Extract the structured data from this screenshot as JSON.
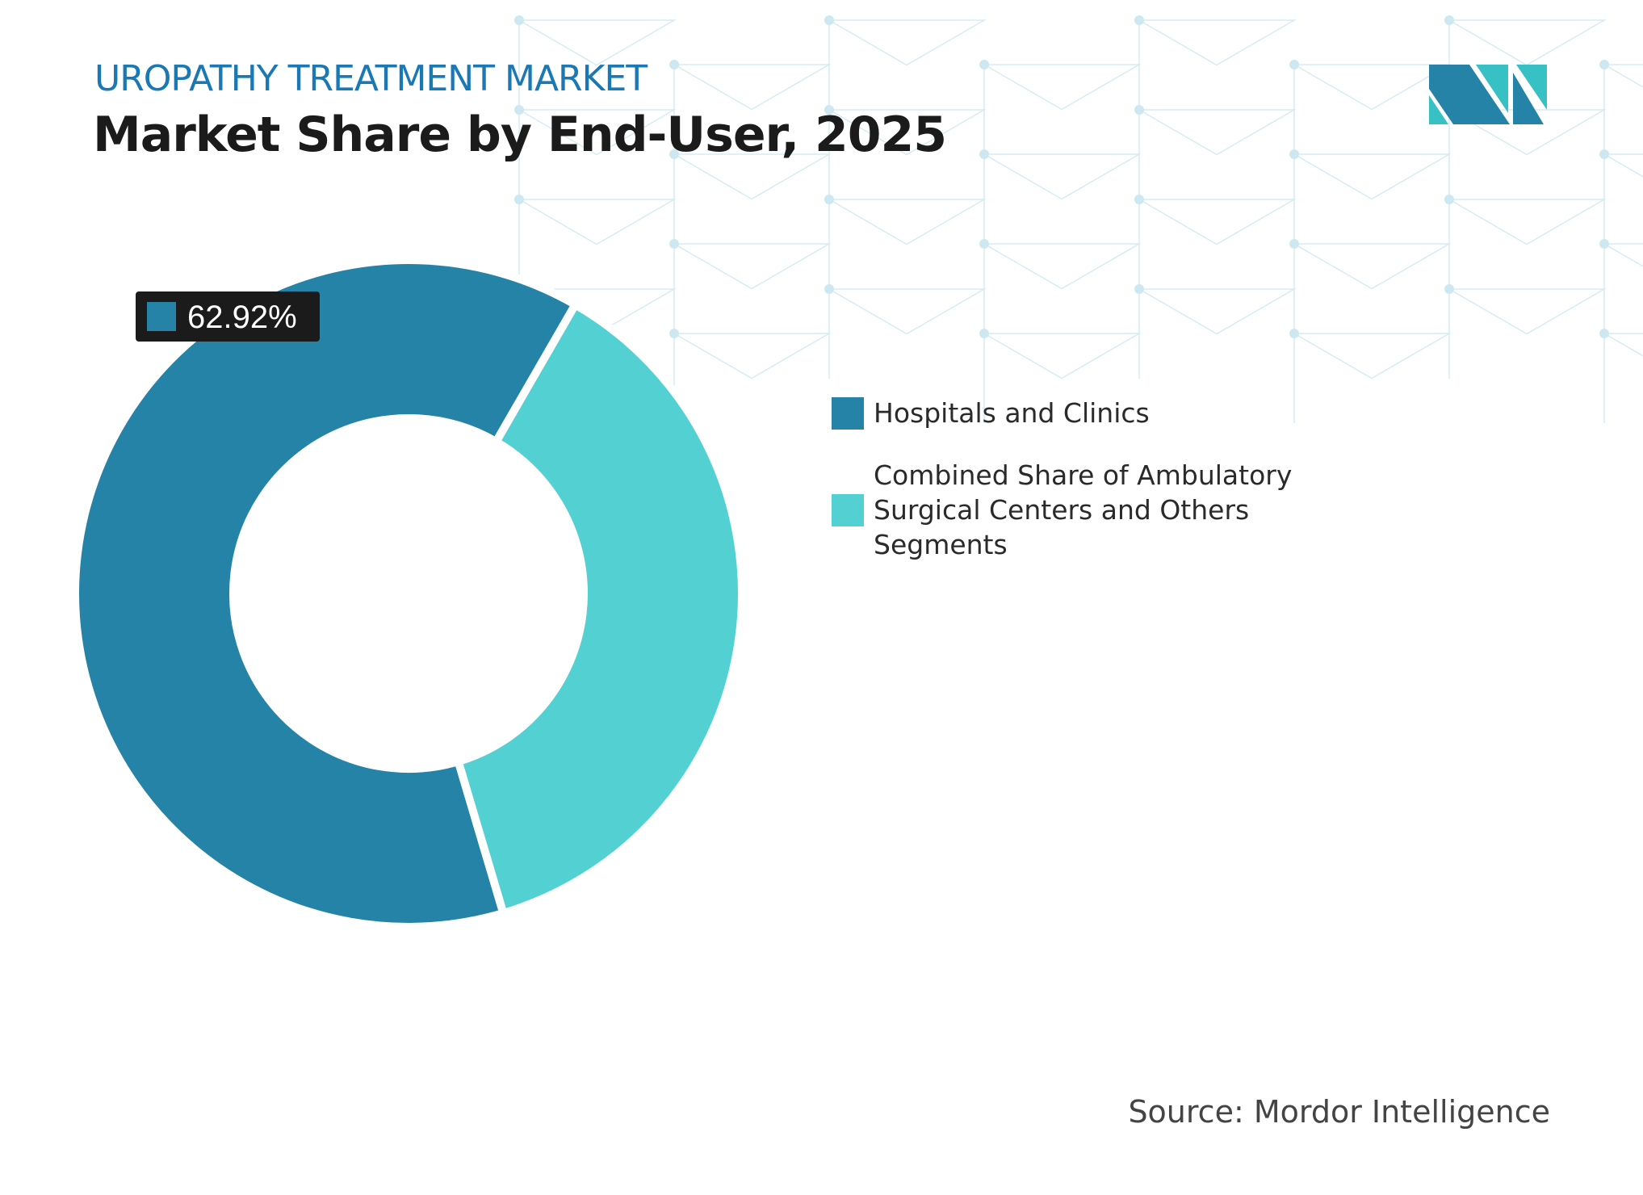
{
  "header": {
    "kicker": "UROPATHY TREATMENT MARKET",
    "title": "Market Share by End-User, 2025"
  },
  "source": "Source: Mordor Intelligence",
  "colors": {
    "accent": "#1a78b4",
    "hospitals": "#2683a8",
    "combined": "#52d0d2",
    "label_bg": "#1b1b1b"
  },
  "chart_data": {
    "type": "pie",
    "donut": true,
    "title": "Market Share by End-User, 2025",
    "legend_position": "right",
    "series": [
      {
        "name": "Hospitals and Clinics",
        "value": 62.92,
        "color": "#2683a8"
      },
      {
        "name": "Combined Share of Ambulatory Surgical Centers and Others Segments",
        "value": 37.08,
        "color": "#52d0d2"
      }
    ],
    "data_labels": [
      {
        "series": "Hospitals and Clinics",
        "text": "62.92%"
      }
    ]
  }
}
